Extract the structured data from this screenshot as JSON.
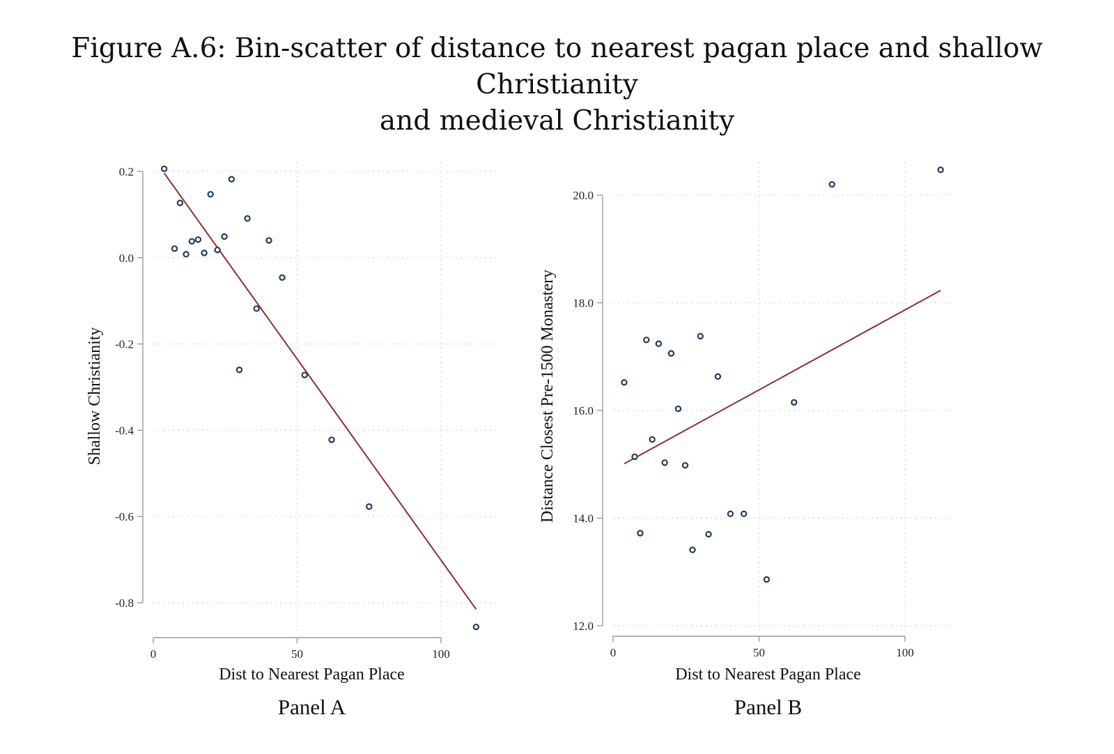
{
  "figure": {
    "title_line1": "Figure A.6: Bin-scatter of distance to nearest pagan place and shallow Christianity",
    "title_line2": "and medieval Christianity"
  },
  "colors": {
    "points": "#1f3d5f",
    "fit_line": "#8b2e2e",
    "grid": "#d3d3d3",
    "axis": "#9a9a9a"
  },
  "chart_data": [
    {
      "type": "scatter",
      "panel_label": "Panel A",
      "xlabel": "Dist to Nearest Pagan Place",
      "ylabel": "Shallow Christianity",
      "xlim": [
        0,
        115
      ],
      "ylim": [
        -0.86,
        0.2
      ],
      "xticks": [
        0,
        50,
        100
      ],
      "xtick_labels": [
        "0",
        "50",
        "100"
      ],
      "yticks": [
        0.2,
        0.0,
        -0.2,
        -0.4,
        -0.6,
        -0.8
      ],
      "ytick_labels": [
        "0.2",
        "0.0",
        "-0.2",
        "-0.4",
        "-0.6",
        "-0.8"
      ],
      "grid": true,
      "points": [
        {
          "x": 3.8,
          "y": 0.206
        },
        {
          "x": 7.4,
          "y": 0.021
        },
        {
          "x": 9.3,
          "y": 0.127
        },
        {
          "x": 11.4,
          "y": 0.008
        },
        {
          "x": 13.4,
          "y": 0.038
        },
        {
          "x": 15.6,
          "y": 0.042
        },
        {
          "x": 17.7,
          "y": 0.011
        },
        {
          "x": 19.9,
          "y": 0.147
        },
        {
          "x": 22.3,
          "y": 0.018
        },
        {
          "x": 24.7,
          "y": 0.049
        },
        {
          "x": 27.2,
          "y": 0.182
        },
        {
          "x": 29.9,
          "y": -0.26
        },
        {
          "x": 32.7,
          "y": 0.091
        },
        {
          "x": 35.9,
          "y": -0.118
        },
        {
          "x": 40.2,
          "y": 0.04
        },
        {
          "x": 44.8,
          "y": -0.046
        },
        {
          "x": 52.6,
          "y": -0.272
        },
        {
          "x": 62.0,
          "y": -0.422
        },
        {
          "x": 75.0,
          "y": -0.577
        },
        {
          "x": 112.2,
          "y": -0.856
        }
      ],
      "fit": {
        "x": [
          3.8,
          112.2
        ],
        "y": [
          0.196,
          -0.815
        ]
      }
    },
    {
      "type": "scatter",
      "panel_label": "Panel B",
      "xlabel": "Dist to Nearest Pagan Place",
      "ylabel": "Distance Closest Pre-1500 Monastery",
      "xlim": [
        0,
        115
      ],
      "ylim": [
        12.0,
        20.5
      ],
      "xticks": [
        0,
        50,
        100
      ],
      "xtick_labels": [
        "0",
        "50",
        "100"
      ],
      "yticks": [
        20.0,
        18.0,
        16.0,
        14.0,
        12.0
      ],
      "ytick_labels": [
        "20.0",
        "18.0",
        "16.0",
        "14.0",
        "12.0"
      ],
      "grid": true,
      "points": [
        {
          "x": 3.8,
          "y": 16.52
        },
        {
          "x": 7.4,
          "y": 15.14
        },
        {
          "x": 9.3,
          "y": 13.72
        },
        {
          "x": 11.4,
          "y": 17.31
        },
        {
          "x": 13.4,
          "y": 15.46
        },
        {
          "x": 15.6,
          "y": 17.24
        },
        {
          "x": 17.7,
          "y": 15.03
        },
        {
          "x": 19.9,
          "y": 17.06
        },
        {
          "x": 22.3,
          "y": 16.03
        },
        {
          "x": 24.7,
          "y": 14.98
        },
        {
          "x": 27.2,
          "y": 13.41
        },
        {
          "x": 29.9,
          "y": 17.38
        },
        {
          "x": 32.7,
          "y": 13.7
        },
        {
          "x": 35.9,
          "y": 16.63
        },
        {
          "x": 40.2,
          "y": 14.08
        },
        {
          "x": 44.8,
          "y": 14.08
        },
        {
          "x": 52.6,
          "y": 12.86
        },
        {
          "x": 62.0,
          "y": 16.15
        },
        {
          "x": 75.0,
          "y": 20.2
        },
        {
          "x": 112.2,
          "y": 20.47
        }
      ],
      "fit": {
        "x": [
          3.8,
          112.2
        ],
        "y": [
          15.01,
          18.23
        ]
      }
    }
  ]
}
